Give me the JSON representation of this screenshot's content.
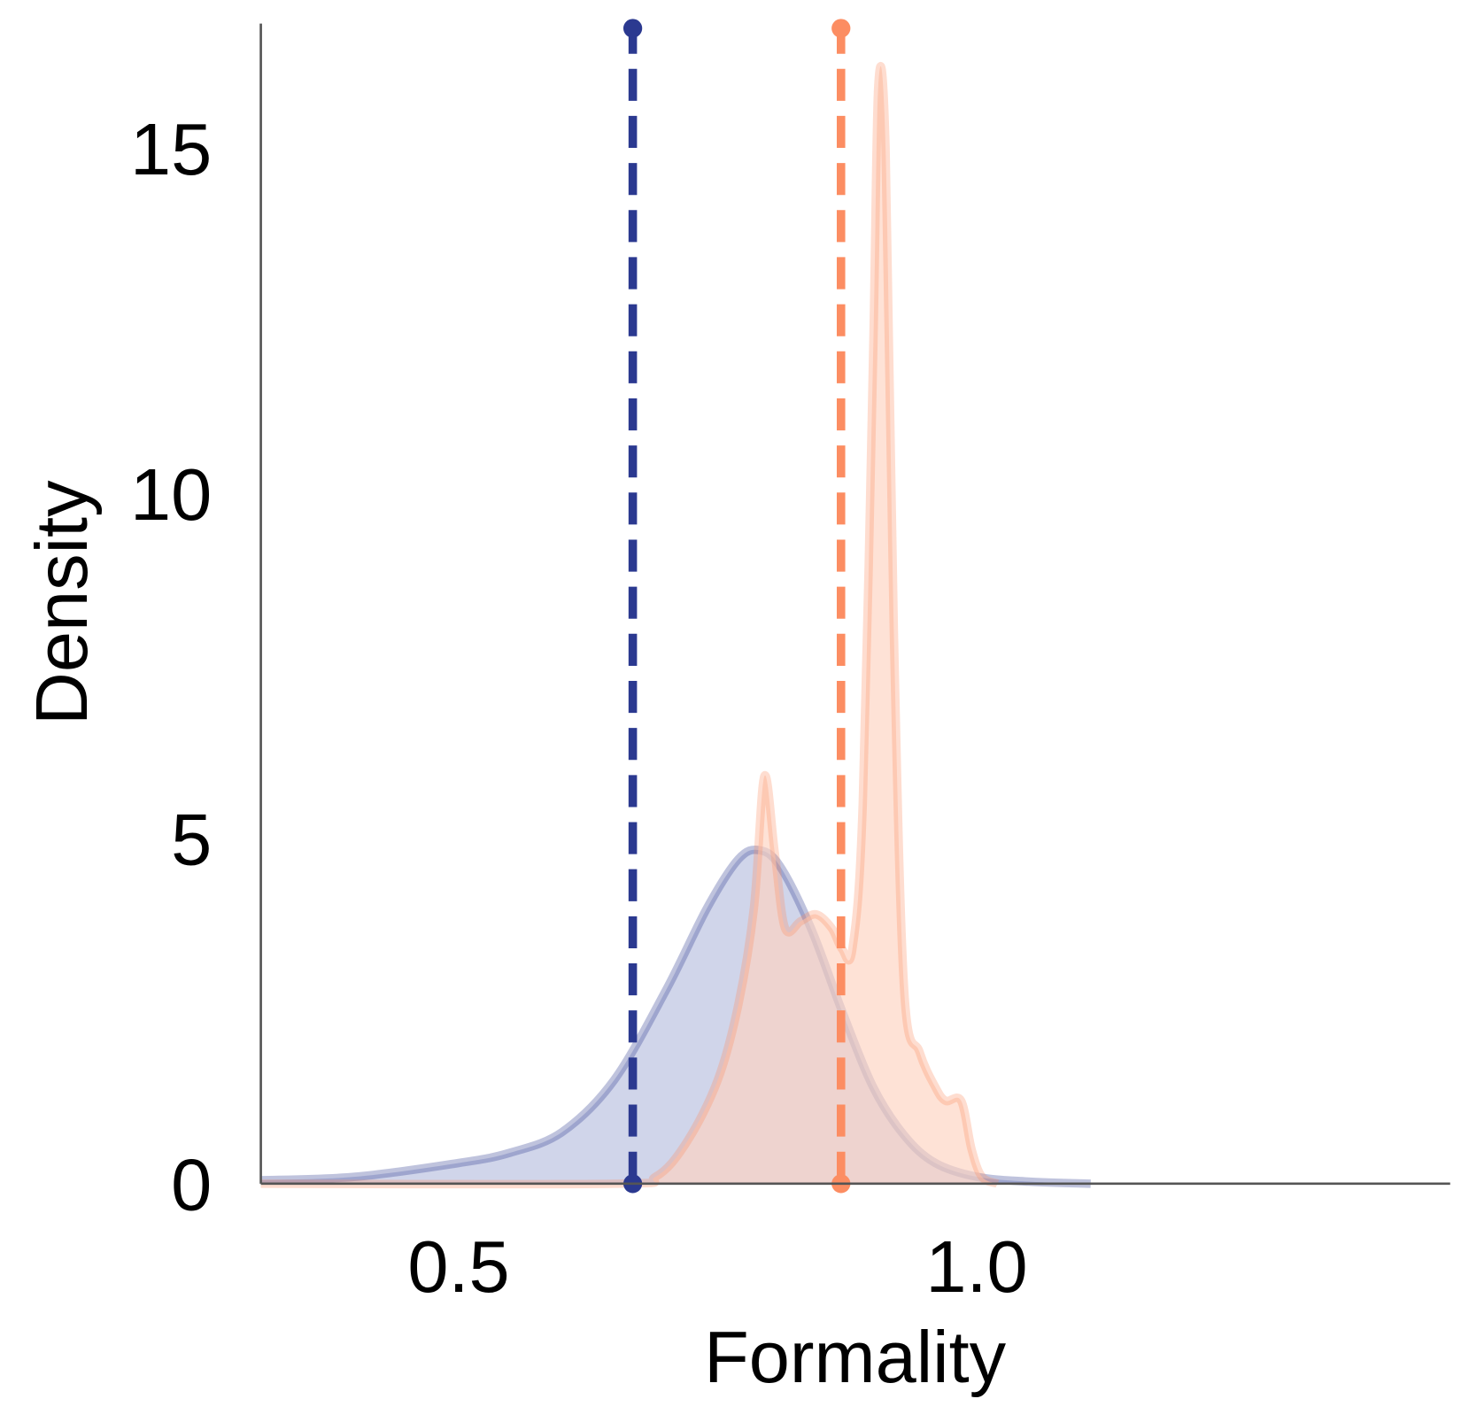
{
  "chart_data": {
    "type": "area",
    "title": "",
    "xlabel": "Formality",
    "ylabel": "Density",
    "xlim": [
      0.309,
      1.457
    ],
    "ylim": [
      0,
      16.8
    ],
    "xticks": [
      0.5,
      1.0
    ],
    "xtick_labels": [
      "0.5",
      "1.0"
    ],
    "yticks": [
      0,
      5,
      10,
      15
    ],
    "ytick_labels": [
      "0",
      "5",
      "10",
      "15"
    ],
    "grid": false,
    "legend": "none",
    "series": [
      {
        "color": "#2b3990",
        "fill": "#b7bedf",
        "mean": 0.668,
        "x": [
          0.309,
          0.4,
          0.5,
          0.55,
          0.6,
          0.65,
          0.7,
          0.74,
          0.77,
          0.79,
          0.81,
          0.84,
          0.87,
          0.9,
          0.93,
          0.96,
          1.0,
          1.05,
          1.11
        ],
        "y": [
          0.05,
          0.1,
          0.3,
          0.45,
          0.75,
          1.5,
          2.8,
          4.0,
          4.7,
          4.83,
          4.6,
          3.7,
          2.5,
          1.4,
          0.7,
          0.3,
          0.1,
          0.03,
          0
        ]
      },
      {
        "color": "#fc8d62",
        "fill": "#fdd3c0",
        "mean": 0.869,
        "x": [
          0.309,
          0.65,
          0.69,
          0.72,
          0.75,
          0.77,
          0.785,
          0.795,
          0.805,
          0.815,
          0.83,
          0.845,
          0.86,
          0.87,
          0.88,
          0.89,
          0.9,
          0.905,
          0.912,
          0.92,
          0.93,
          0.945,
          0.96,
          0.97,
          0.985,
          0.995,
          1.005,
          1.02
        ],
        "y": [
          0,
          0,
          0.1,
          0.6,
          1.5,
          2.6,
          4.0,
          5.9,
          4.8,
          3.7,
          3.8,
          3.9,
          3.7,
          3.4,
          3.4,
          5.5,
          12.0,
          15.9,
          15.0,
          8.0,
          2.8,
          1.9,
          1.4,
          1.2,
          1.2,
          0.5,
          0.1,
          0
        ]
      }
    ]
  }
}
